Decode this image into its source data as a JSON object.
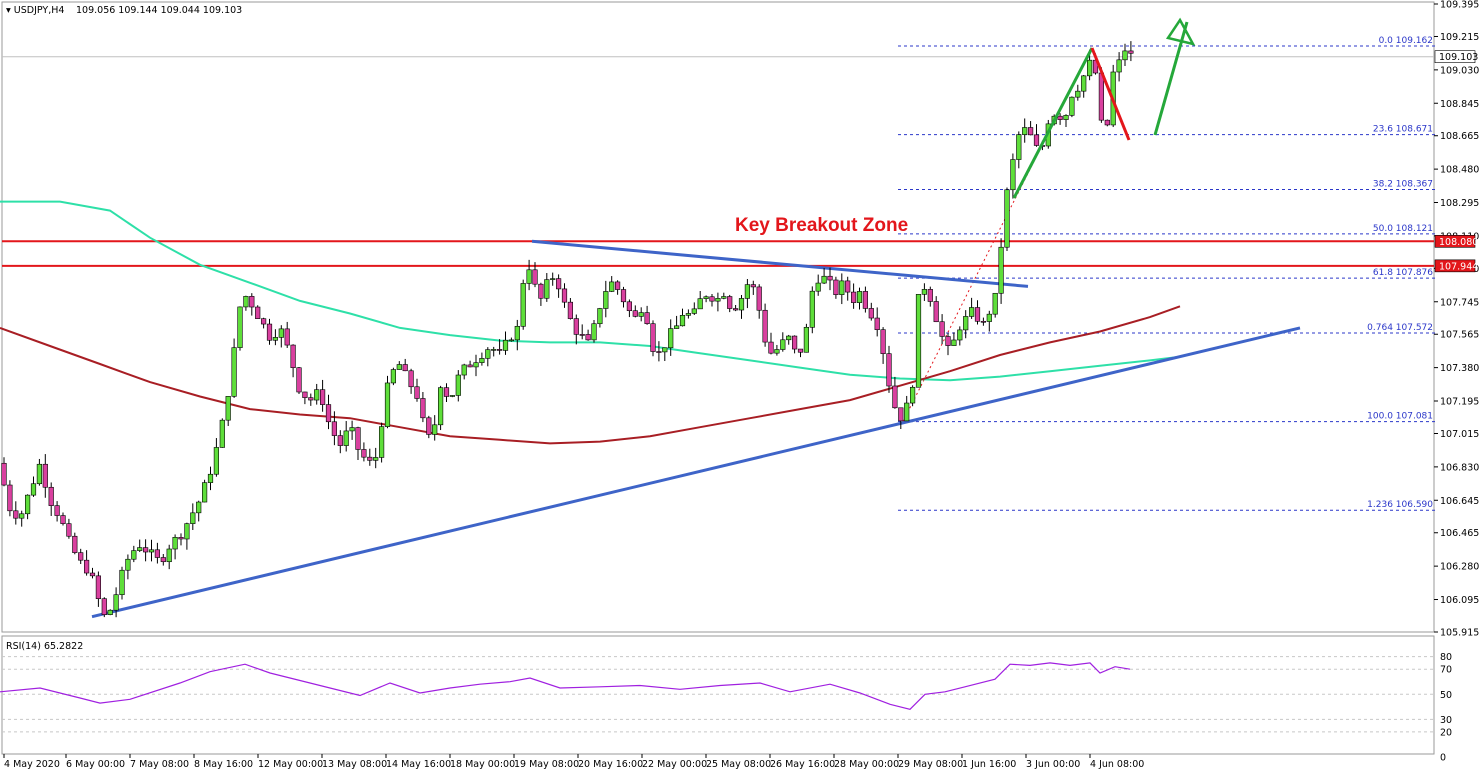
{
  "header": {
    "symbol": "USDJPY,H4",
    "ohlc": "109.056 109.144 109.044 109.103"
  },
  "annotation": "Key Breakout Zone",
  "colors": {
    "bull": "#5ede3a",
    "bear": "#d9409f",
    "ema100": "#2ee0a8",
    "ema200": "#a81e24",
    "trendline": "#3e64c8",
    "resistance": "#e3161b",
    "fib": "#2b37c9",
    "rsi": "#a020e0",
    "arrow_up": "#25a83a",
    "arrow_down": "#e3161b"
  },
  "price_tags": {
    "current": "109.103",
    "res1": "108.080",
    "res2": "107.944"
  },
  "fib_levels": [
    {
      "label": "0.0 109.162",
      "price": 109.162
    },
    {
      "label": "23.6 108.671",
      "price": 108.671
    },
    {
      "label": "38.2 108.367",
      "price": 108.367
    },
    {
      "label": "50.0 108.121",
      "price": 108.121
    },
    {
      "label": "61.8 107.876",
      "price": 107.876
    },
    {
      "label": "0.764 107.572",
      "price": 107.572
    },
    {
      "label": "100.0 107.081",
      "price": 107.081
    },
    {
      "label": "1.236 106.590",
      "price": 106.59
    }
  ],
  "rsi": {
    "label": "RSI(14) 65.2822",
    "levels": [
      80,
      70,
      50,
      30,
      20,
      0
    ],
    "ticks": [
      "80",
      "70",
      "50",
      "30",
      "20",
      "0"
    ]
  },
  "chart_data": {
    "type": "candlestick",
    "symbol": "USDJPY",
    "timeframe": "H4",
    "y_ticks": [
      "109.395",
      "109.215",
      "109.030",
      "108.845",
      "108.665",
      "108.480",
      "108.295",
      "108.110",
      "107.930",
      "107.745",
      "107.565",
      "107.380",
      "107.195",
      "107.015",
      "106.830",
      "106.645",
      "106.465",
      "106.280",
      "106.095",
      "105.915"
    ],
    "ylim": [
      105.915,
      109.395
    ],
    "x_labels": [
      "4 May 2020",
      "6 May 00:00",
      "7 May 08:00",
      "8 May 16:00",
      "12 May 00:00",
      "13 May 08:00",
      "14 May 16:00",
      "18 May 00:00",
      "19 May 08:00",
      "20 May 16:00",
      "22 May 00:00",
      "25 May 08:00",
      "26 May 16:00",
      "28 May 00:00",
      "29 May 08:00",
      "1 Jun 16:00",
      "3 Jun 00:00",
      "4 Jun 08:00"
    ],
    "price_path": [
      [
        0,
        106.85
      ],
      [
        5,
        106.7
      ],
      [
        10,
        106.6
      ],
      [
        20,
        106.55
      ],
      [
        30,
        106.7
      ],
      [
        40,
        106.85
      ],
      [
        50,
        106.65
      ],
      [
        60,
        106.55
      ],
      [
        70,
        106.4
      ],
      [
        80,
        106.3
      ],
      [
        90,
        106.25
      ],
      [
        98,
        106.1
      ],
      [
        104,
        106.0
      ],
      [
        112,
        106.05
      ],
      [
        120,
        106.2
      ],
      [
        130,
        106.35
      ],
      [
        140,
        106.4
      ],
      [
        150,
        106.35
      ],
      [
        160,
        106.3
      ],
      [
        170,
        106.4
      ],
      [
        180,
        106.45
      ],
      [
        190,
        106.55
      ],
      [
        200,
        106.65
      ],
      [
        210,
        106.8
      ],
      [
        220,
        107.0
      ],
      [
        230,
        107.3
      ],
      [
        236,
        107.55
      ],
      [
        242,
        107.8
      ],
      [
        250,
        107.75
      ],
      [
        260,
        107.65
      ],
      [
        270,
        107.55
      ],
      [
        280,
        107.6
      ],
      [
        290,
        107.45
      ],
      [
        300,
        107.25
      ],
      [
        310,
        107.2
      ],
      [
        320,
        107.25
      ],
      [
        330,
        107.05
      ],
      [
        340,
        106.95
      ],
      [
        350,
        107.05
      ],
      [
        360,
        106.9
      ],
      [
        370,
        106.85
      ],
      [
        378,
        106.9
      ],
      [
        384,
        107.2
      ],
      [
        392,
        107.35
      ],
      [
        400,
        107.4
      ],
      [
        408,
        107.3
      ],
      [
        416,
        107.25
      ],
      [
        424,
        107.05
      ],
      [
        432,
        106.95
      ],
      [
        440,
        107.3
      ],
      [
        450,
        107.2
      ],
      [
        460,
        107.35
      ],
      [
        470,
        107.4
      ],
      [
        480,
        107.45
      ],
      [
        490,
        107.5
      ],
      [
        500,
        107.45
      ],
      [
        510,
        107.55
      ],
      [
        518,
        107.6
      ],
      [
        524,
        107.9
      ],
      [
        530,
        107.95
      ],
      [
        536,
        107.8
      ],
      [
        542,
        107.75
      ],
      [
        550,
        107.9
      ],
      [
        558,
        107.85
      ],
      [
        566,
        107.7
      ],
      [
        574,
        107.6
      ],
      [
        582,
        107.55
      ],
      [
        590,
        107.5
      ],
      [
        596,
        107.65
      ],
      [
        604,
        107.8
      ],
      [
        612,
        107.85
      ],
      [
        620,
        107.8
      ],
      [
        628,
        107.7
      ],
      [
        636,
        107.65
      ],
      [
        644,
        107.75
      ],
      [
        652,
        107.5
      ],
      [
        660,
        107.45
      ],
      [
        668,
        107.55
      ],
      [
        676,
        107.6
      ],
      [
        684,
        107.7
      ],
      [
        692,
        107.65
      ],
      [
        700,
        107.75
      ],
      [
        708,
        107.8
      ],
      [
        716,
        107.75
      ],
      [
        724,
        107.8
      ],
      [
        732,
        107.7
      ],
      [
        740,
        107.75
      ],
      [
        748,
        107.85
      ],
      [
        756,
        107.8
      ],
      [
        764,
        107.55
      ],
      [
        772,
        107.45
      ],
      [
        780,
        107.5
      ],
      [
        788,
        107.55
      ],
      [
        796,
        107.45
      ],
      [
        804,
        107.5
      ],
      [
        812,
        107.8
      ],
      [
        820,
        107.9
      ],
      [
        828,
        107.85
      ],
      [
        836,
        107.8
      ],
      [
        844,
        107.85
      ],
      [
        852,
        107.75
      ],
      [
        860,
        107.8
      ],
      [
        868,
        107.7
      ],
      [
        876,
        107.65
      ],
      [
        884,
        107.45
      ],
      [
        892,
        107.2
      ],
      [
        900,
        107.1
      ],
      [
        906,
        107.15
      ],
      [
        912,
        107.25
      ],
      [
        918,
        107.75
      ],
      [
        926,
        107.85
      ],
      [
        934,
        107.7
      ],
      [
        942,
        107.55
      ],
      [
        950,
        107.45
      ],
      [
        958,
        107.6
      ],
      [
        966,
        107.65
      ],
      [
        974,
        107.7
      ],
      [
        982,
        107.6
      ],
      [
        990,
        107.7
      ],
      [
        998,
        107.8
      ],
      [
        1004,
        108.3
      ],
      [
        1010,
        108.4
      ],
      [
        1016,
        108.65
      ],
      [
        1024,
        108.7
      ],
      [
        1032,
        108.65
      ],
      [
        1040,
        108.55
      ],
      [
        1048,
        108.75
      ],
      [
        1056,
        108.8
      ],
      [
        1064,
        108.75
      ],
      [
        1072,
        108.9
      ],
      [
        1080,
        108.95
      ],
      [
        1088,
        109.05
      ],
      [
        1094,
        109.1
      ],
      [
        1100,
        108.75
      ],
      [
        1106,
        108.65
      ],
      [
        1112,
        109.0
      ],
      [
        1118,
        109.05
      ],
      [
        1124,
        109.15
      ],
      [
        1132,
        109.1
      ]
    ],
    "series": [
      {
        "name": "EMA100",
        "values": [
          [
            0,
            108.3
          ],
          [
            60,
            108.3
          ],
          [
            110,
            108.25
          ],
          [
            150,
            108.1
          ],
          [
            200,
            107.95
          ],
          [
            250,
            107.85
          ],
          [
            300,
            107.75
          ],
          [
            350,
            107.68
          ],
          [
            400,
            107.6
          ],
          [
            450,
            107.56
          ],
          [
            500,
            107.53
          ],
          [
            550,
            107.52
          ],
          [
            600,
            107.52
          ],
          [
            650,
            107.5
          ],
          [
            700,
            107.46
          ],
          [
            750,
            107.42
          ],
          [
            800,
            107.38
          ],
          [
            850,
            107.34
          ],
          [
            900,
            107.32
          ],
          [
            950,
            107.31
          ],
          [
            1000,
            107.33
          ],
          [
            1050,
            107.36
          ],
          [
            1100,
            107.39
          ],
          [
            1150,
            107.42
          ],
          [
            1180,
            107.44
          ]
        ]
      },
      {
        "name": "EMA200",
        "values": [
          [
            0,
            107.6
          ],
          [
            50,
            107.5
          ],
          [
            100,
            107.4
          ],
          [
            150,
            107.3
          ],
          [
            200,
            107.22
          ],
          [
            250,
            107.15
          ],
          [
            300,
            107.12
          ],
          [
            350,
            107.1
          ],
          [
            400,
            107.05
          ],
          [
            450,
            107.0
          ],
          [
            500,
            106.98
          ],
          [
            550,
            106.96
          ],
          [
            600,
            106.97
          ],
          [
            650,
            107.0
          ],
          [
            700,
            107.05
          ],
          [
            750,
            107.1
          ],
          [
            800,
            107.15
          ],
          [
            850,
            107.2
          ],
          [
            900,
            107.28
          ],
          [
            950,
            107.36
          ],
          [
            1000,
            107.45
          ],
          [
            1050,
            107.52
          ],
          [
            1100,
            107.58
          ],
          [
            1150,
            107.66
          ],
          [
            1180,
            107.72
          ]
        ]
      }
    ],
    "trendlines": [
      {
        "name": "rising support",
        "from": [
          92,
          106.0
        ],
        "to": [
          1300,
          107.6
        ]
      },
      {
        "name": "falling resistance",
        "from": [
          532,
          108.08
        ],
        "to": [
          1028,
          107.83
        ]
      }
    ],
    "horizontal_levels": [
      108.08,
      107.944
    ],
    "rsi_values": [
      [
        0,
        52
      ],
      [
        40,
        55
      ],
      [
        80,
        47
      ],
      [
        100,
        43
      ],
      [
        130,
        46
      ],
      [
        180,
        59
      ],
      [
        210,
        68
      ],
      [
        245,
        74
      ],
      [
        270,
        67
      ],
      [
        300,
        61
      ],
      [
        330,
        55
      ],
      [
        360,
        49
      ],
      [
        390,
        59
      ],
      [
        420,
        51
      ],
      [
        450,
        55
      ],
      [
        480,
        58
      ],
      [
        510,
        60
      ],
      [
        530,
        63
      ],
      [
        560,
        55
      ],
      [
        600,
        56
      ],
      [
        640,
        57
      ],
      [
        680,
        54
      ],
      [
        720,
        57
      ],
      [
        760,
        59
      ],
      [
        790,
        52
      ],
      [
        830,
        58
      ],
      [
        860,
        51
      ],
      [
        890,
        42
      ],
      [
        910,
        38
      ],
      [
        925,
        50
      ],
      [
        945,
        52
      ],
      [
        965,
        56
      ],
      [
        995,
        62
      ],
      [
        1010,
        74
      ],
      [
        1030,
        73
      ],
      [
        1050,
        75
      ],
      [
        1070,
        73
      ],
      [
        1090,
        75
      ],
      [
        1100,
        67
      ],
      [
        1115,
        72
      ],
      [
        1130,
        70
      ]
    ]
  }
}
